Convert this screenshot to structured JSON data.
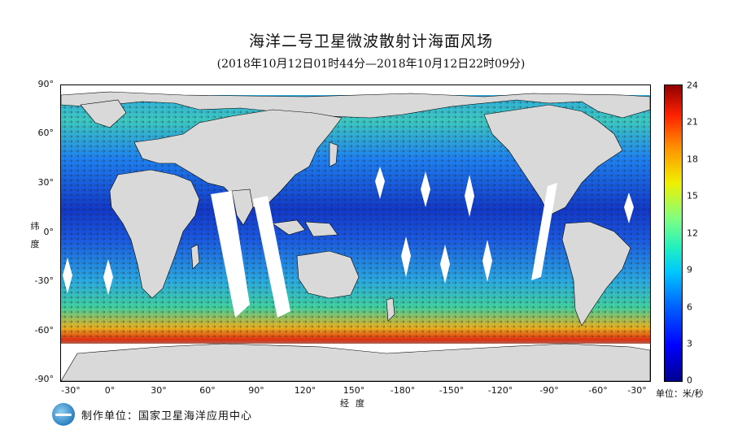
{
  "title": "海洋二号卫星微波散射计海面风场",
  "subtitle": "(2018年10月12日01时44分—2018年10月12日22时09分)",
  "y_axis": {
    "title": "纬度",
    "ticks": [
      "90°",
      "60°",
      "30°",
      "0°",
      "-30°",
      "-60°",
      "-90°"
    ]
  },
  "x_axis": {
    "title": "经度",
    "ticks": [
      "-30°",
      "0°",
      "30°",
      "60°",
      "90°",
      "120°",
      "150°",
      "-180°",
      "-150°",
      "-120°",
      "-90°",
      "-60°",
      "-30°"
    ]
  },
  "colorbar": {
    "ticks": [
      "24",
      "21",
      "18",
      "15",
      "12",
      "9",
      "6",
      "3",
      "0"
    ],
    "unit": "单位：米/秒",
    "colors": [
      "#00008f",
      "#0000ff",
      "#0060ff",
      "#00c8ff",
      "#20f0c0",
      "#80ff80",
      "#f0f000",
      "#ff9000",
      "#ff2000",
      "#900000"
    ]
  },
  "footer": {
    "producer": "制作单位：国家卫星海洋应用中心"
  },
  "map_colors": {
    "land": "#d9d9d9",
    "ocean_base": "#1a4fd0",
    "gap": "#ffffff"
  }
}
